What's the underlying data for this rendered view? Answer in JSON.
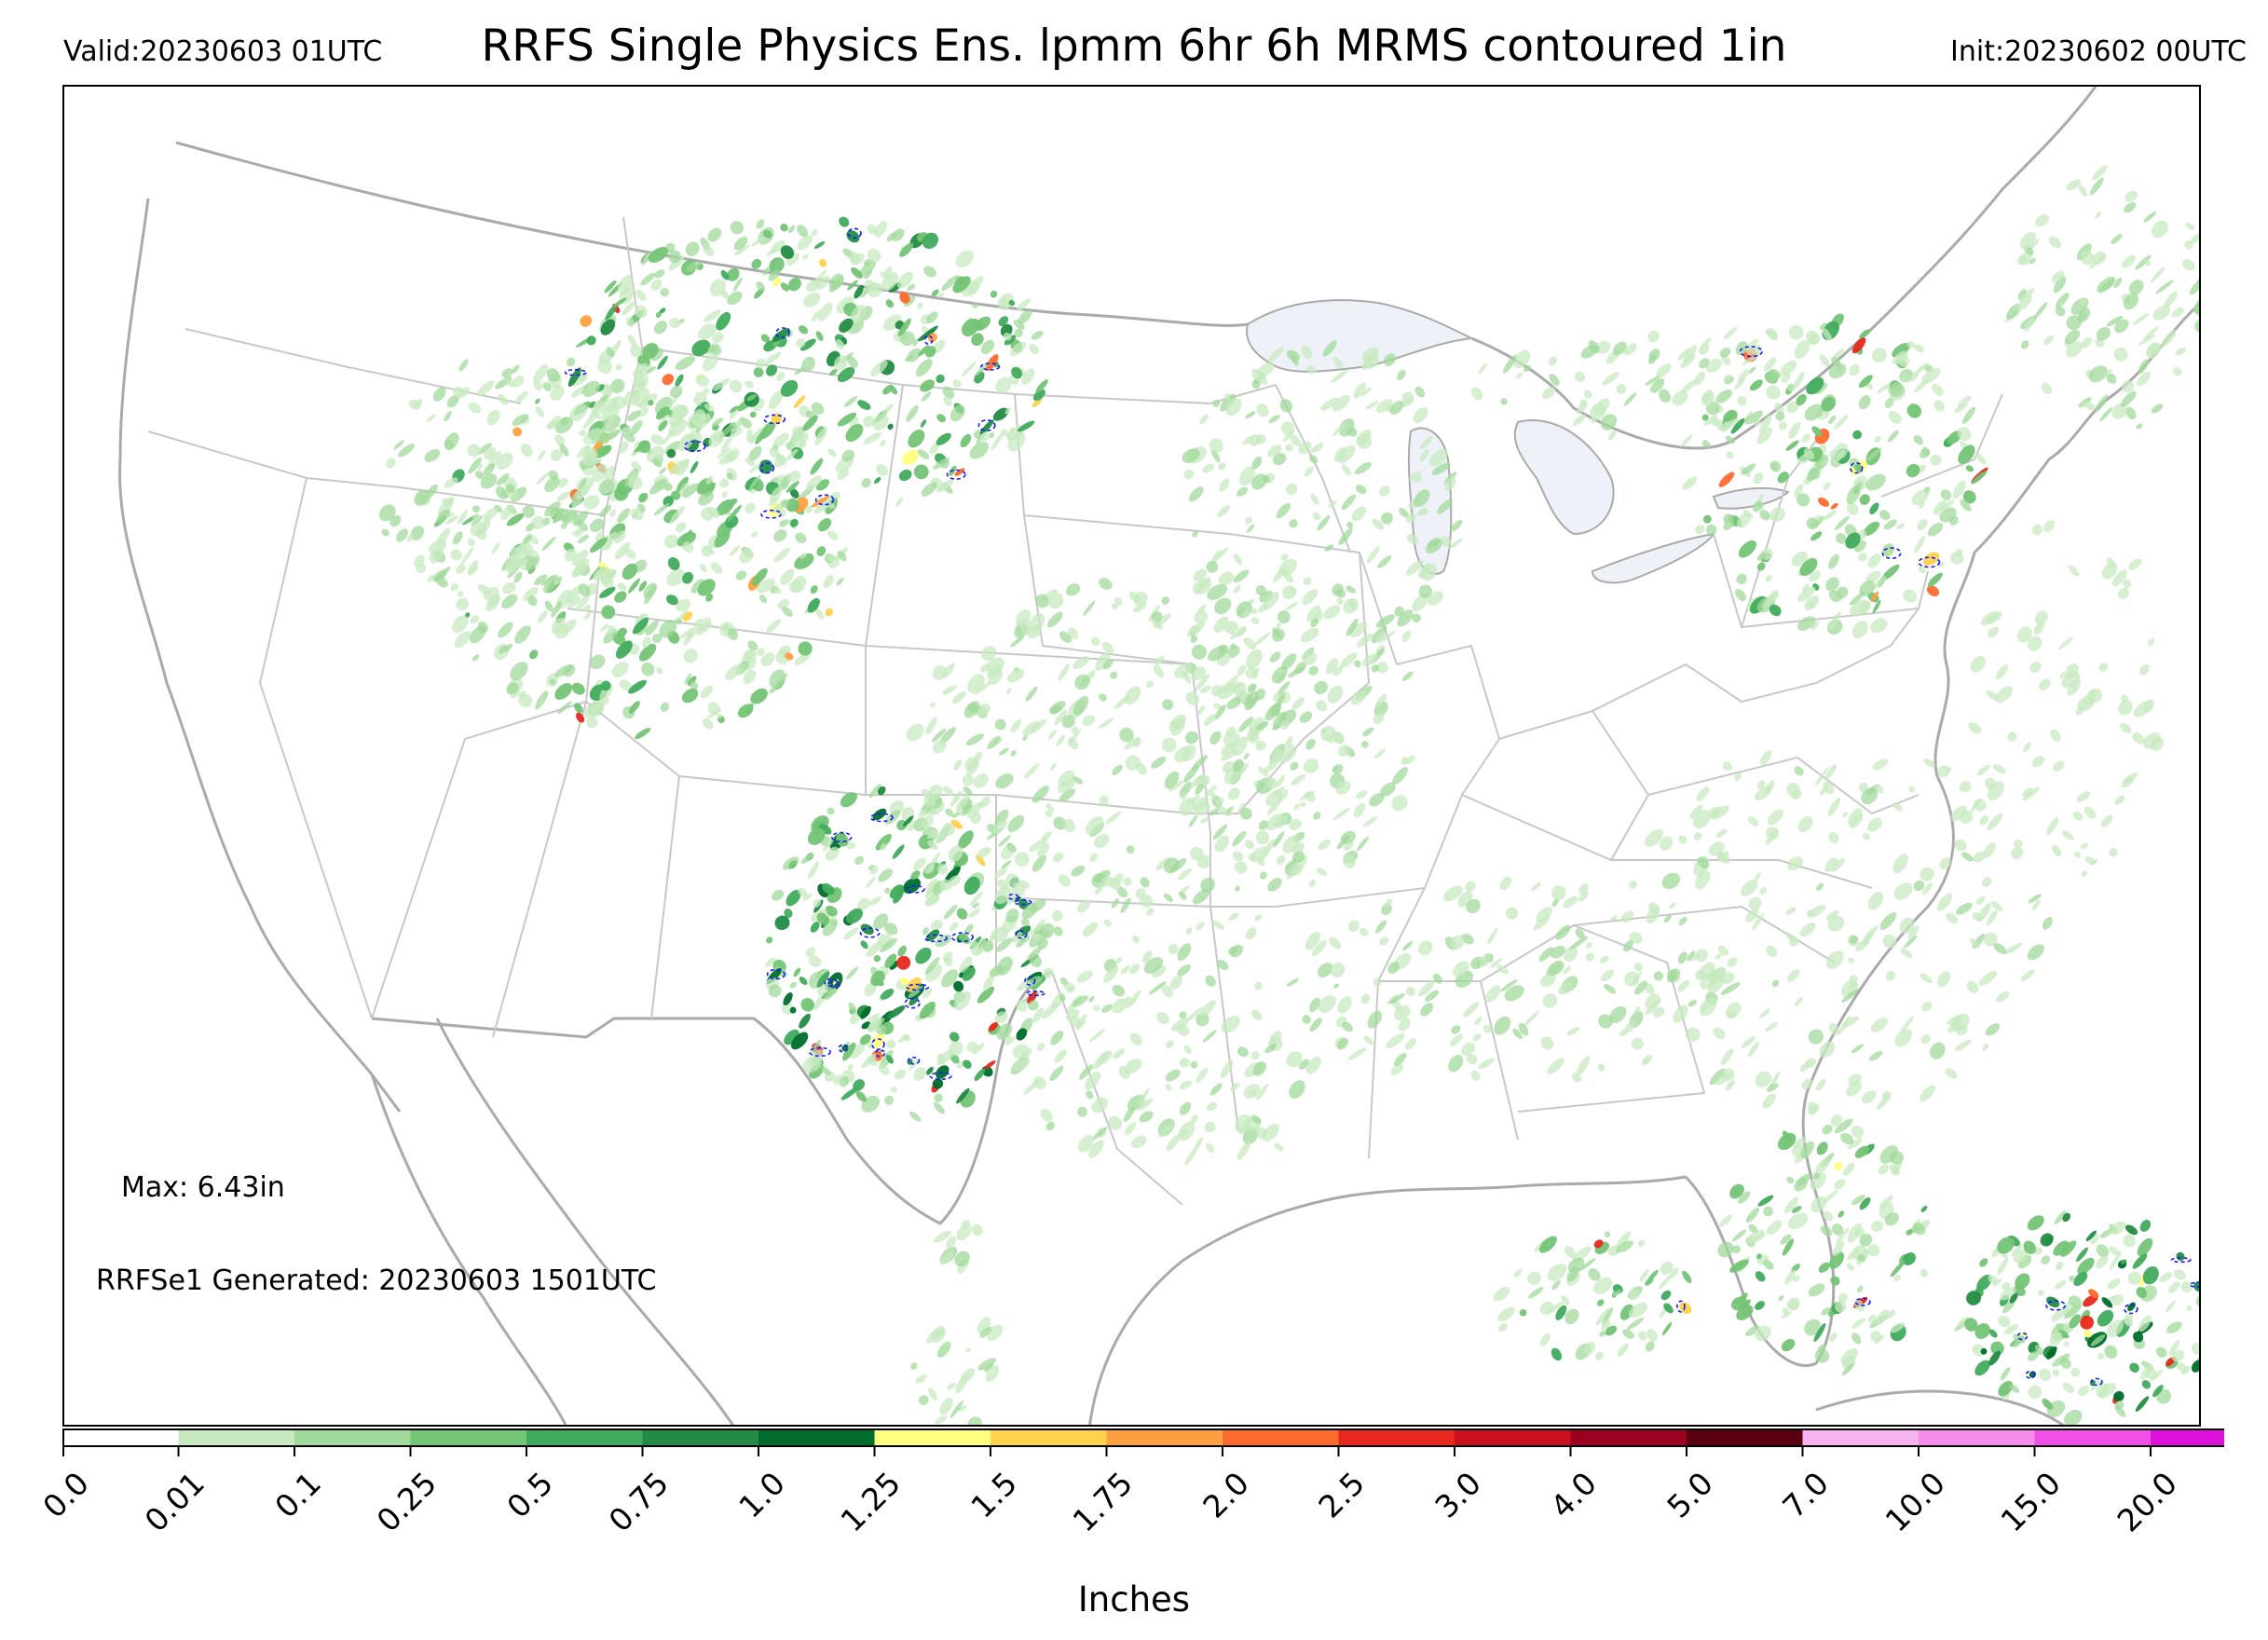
{
  "header": {
    "valid": "Valid:20230603 01UTC",
    "title": "RRFS Single Physics Ens. lpmm 6hr 6h MRMS contoured 1in",
    "init": "Init:20230602 00UTC"
  },
  "annotations": {
    "max": "Max: 6.43in",
    "generated": "RRFSe1 Generated: 20230603 1501UTC"
  },
  "colorbar": {
    "label": "Inches",
    "bounds": [
      "0.0",
      "0.01",
      "0.1",
      "0.25",
      "0.5",
      "0.75",
      "1.0",
      "1.25",
      "1.5",
      "1.75",
      "2.0",
      "2.5",
      "3.0",
      "4.0",
      "5.0",
      "7.0",
      "10.0",
      "15.0",
      "20.0"
    ],
    "colors": [
      "#ffffff",
      "#c7e9c0",
      "#a1d99b",
      "#74c476",
      "#41ab5d",
      "#238b45",
      "#006d2c",
      "#ffff80",
      "#ffd24d",
      "#ffa040",
      "#ff6a2e",
      "#e8281e",
      "#c8101e",
      "#9b0020",
      "#5a0010",
      "#f7b2f0",
      "#f58cec",
      "#f050e6",
      "#dd10dc",
      "#9a10c8"
    ],
    "extend": "max"
  },
  "map": {
    "colors": {
      "land_border": "#aaaaaa",
      "state_border": "#c8c8c8",
      "lake": "#eef2f8",
      "contour": "#1a1aff"
    }
  }
}
